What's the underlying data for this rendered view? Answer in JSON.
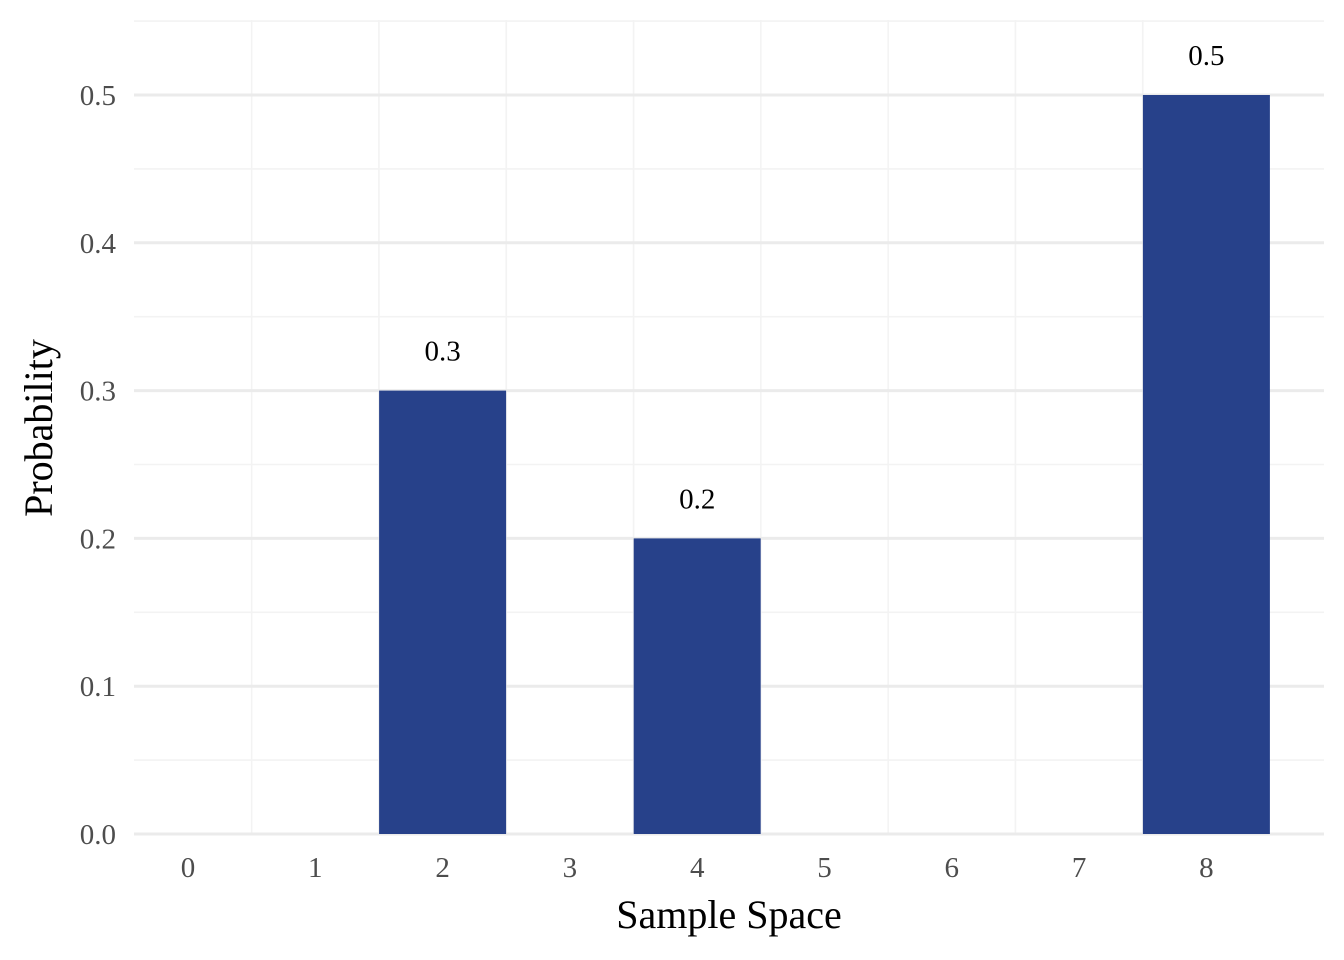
{
  "chart_data": {
    "type": "bar",
    "title": "",
    "xlabel": "Sample Space",
    "ylabel": "Probability",
    "categories": [
      "0",
      "1",
      "2",
      "3",
      "4",
      "5",
      "6",
      "7",
      "8"
    ],
    "values": [
      0,
      0,
      0.3,
      0,
      0.2,
      0,
      0,
      0,
      0.5
    ],
    "data_labels": [
      "",
      "",
      "0.3",
      "",
      "0.2",
      "",
      "",
      "",
      "0.5"
    ],
    "ylim": [
      0,
      0.55
    ],
    "yticks": [
      0,
      0.1,
      0.2,
      0.3,
      0.4,
      0.5
    ],
    "ytick_labels": [
      "0.0",
      "0.1",
      "0.2",
      "0.3",
      "0.4",
      "0.5"
    ],
    "bar_color": "#27418A",
    "grid": true,
    "legend": "none"
  }
}
